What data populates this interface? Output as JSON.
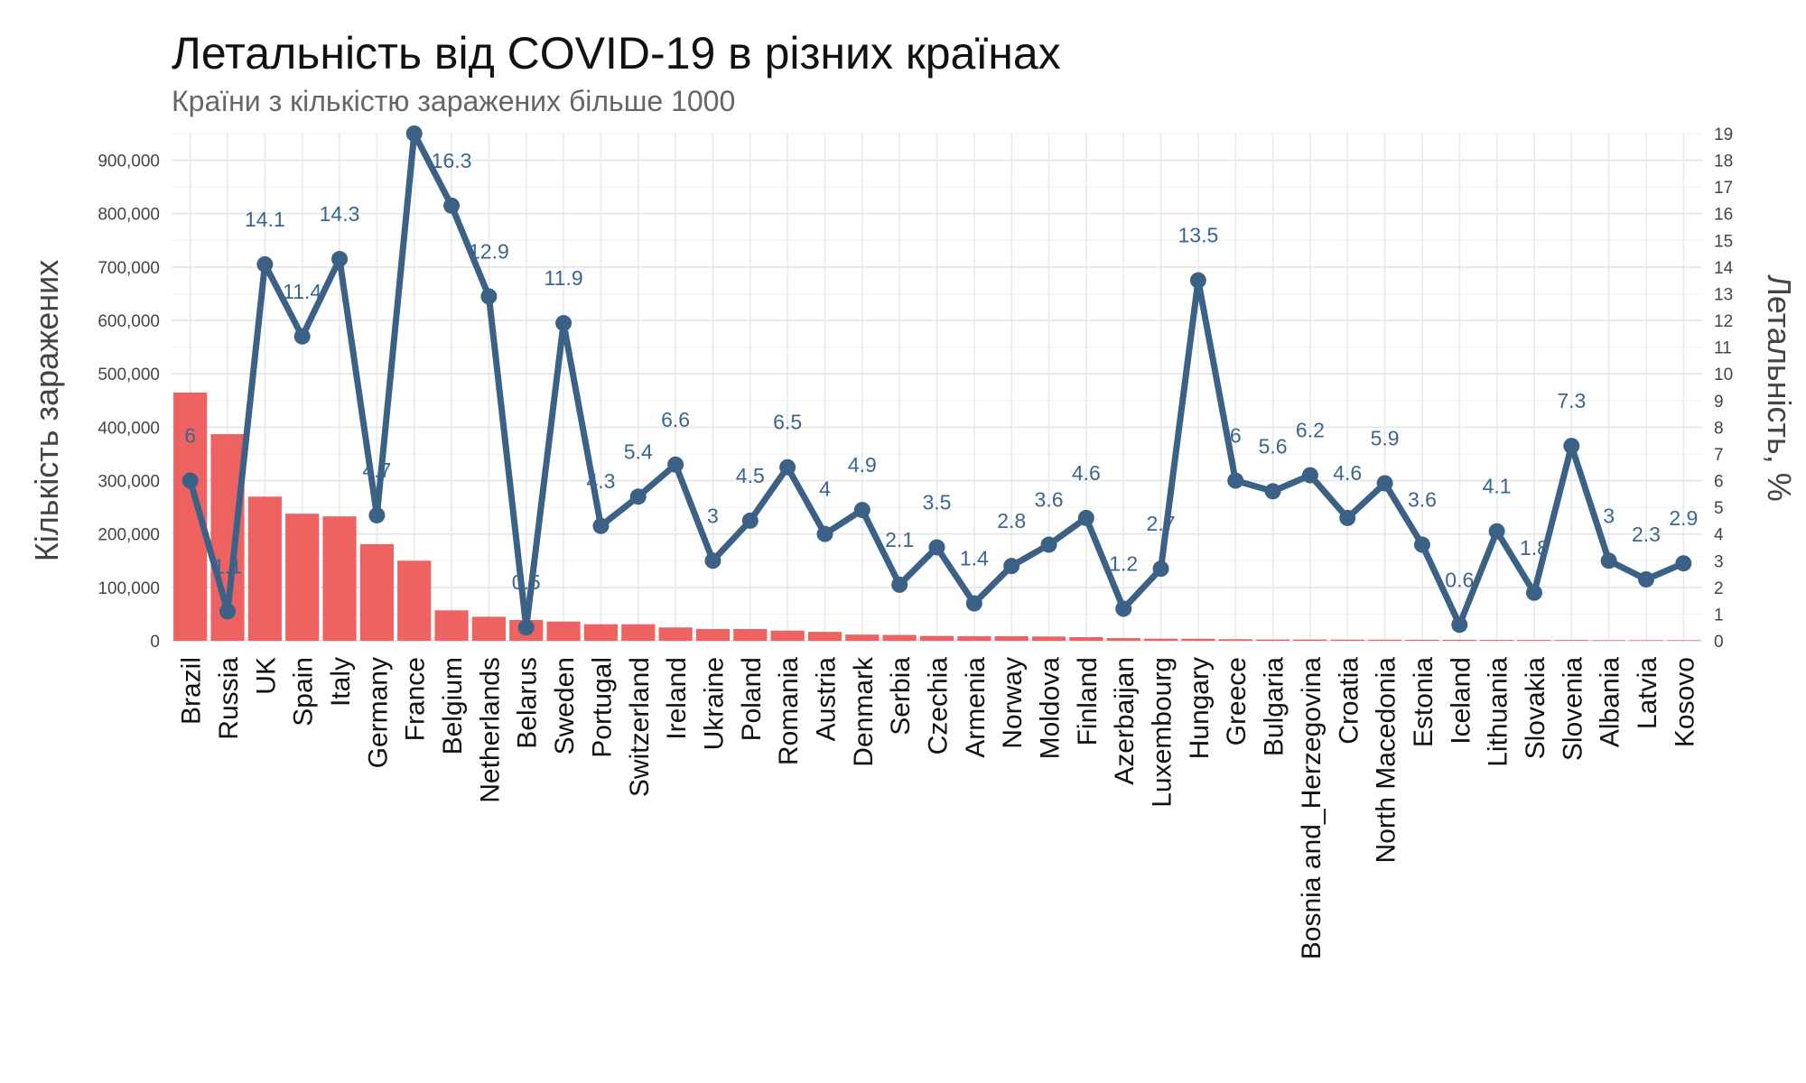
{
  "chart_data": {
    "type": "bar",
    "title": "Летальність від COVID-19 в різних країнах",
    "subtitle": "Країни з кількістю заражених більше 1000",
    "ylabel_left": "Кількість заражених",
    "ylabel_right": "Летальність, %",
    "y_left_range": [
      0,
      950000
    ],
    "y_left_ticks": [
      "0",
      "100,000",
      "200,000",
      "300,000",
      "400,000",
      "500,000",
      "600,000",
      "700,000",
      "800,000",
      "900,000"
    ],
    "y_right_range": [
      0,
      19
    ],
    "y_right_ticks": [
      "0",
      "1",
      "2",
      "3",
      "4",
      "5",
      "6",
      "7",
      "8",
      "9",
      "10",
      "11",
      "12",
      "13",
      "14",
      "15",
      "16",
      "17",
      "18",
      "19"
    ],
    "grid": true,
    "bar_color": "#EF6262",
    "line_color": "#3B6286",
    "categories": [
      "Brazil",
      "Russia",
      "UK",
      "Spain",
      "Italy",
      "Germany",
      "France",
      "Belgium",
      "Netherlands",
      "Belarus",
      "Sweden",
      "Portugal",
      "Switzerland",
      "Ireland",
      "Ukraine",
      "Poland",
      "Romania",
      "Austria",
      "Denmark",
      "Serbia",
      "Czechia",
      "Armenia",
      "Norway",
      "Moldova",
      "Finland",
      "Azerbaijan",
      "Luxembourg",
      "Hungary",
      "Greece",
      "Bulgaria",
      "Bosnia and_Herzegovina",
      "Croatia",
      "North Macedonia",
      "Estonia",
      "Iceland",
      "Lithuania",
      "Slovakia",
      "Slovenia",
      "Albania",
      "Latvia",
      "Kosovo"
    ],
    "series": [
      {
        "type": "bar",
        "axis": "left",
        "values": [
          465000,
          387000,
          270000,
          238000,
          233000,
          181000,
          150000,
          57000,
          45000,
          39000,
          36000,
          31000,
          31000,
          25000,
          22000,
          22000,
          19000,
          16700,
          11600,
          11000,
          9000,
          8500,
          8400,
          7900,
          6800,
          5000,
          4000,
          3800,
          2900,
          2400,
          2400,
          2200,
          2000,
          1900,
          1800,
          1600,
          1500,
          1400,
          1100,
          1050,
          1050
        ]
      },
      {
        "type": "line",
        "axis": "right",
        "values": [
          6,
          1.1,
          14.1,
          11.4,
          14.3,
          4.7,
          19,
          16.3,
          12.9,
          0.5,
          11.9,
          4.3,
          5.4,
          6.6,
          3,
          4.5,
          6.5,
          4,
          4.9,
          2.1,
          3.5,
          1.4,
          2.8,
          3.6,
          4.6,
          1.2,
          2.7,
          13.5,
          6,
          5.6,
          6.2,
          4.6,
          5.9,
          3.6,
          0.6,
          4.1,
          1.8,
          7.3,
          3,
          2.3,
          2.9
        ],
        "labels": [
          "6",
          "1.1",
          "14.1",
          "11.4",
          "14.3",
          "4.7",
          "",
          "16.3",
          "12.9",
          "0.5",
          "11.9",
          "4.3",
          "5.4",
          "6.6",
          "3",
          "4.5",
          "6.5",
          "4",
          "4.9",
          "2.1",
          "3.5",
          "1.4",
          "2.8",
          "3.6",
          "4.6",
          "1.2",
          "2.7",
          "13.5",
          "6",
          "5.6",
          "6.2",
          "4.6",
          "5.9",
          "3.6",
          "0.6",
          "4.1",
          "1.8",
          "7.3",
          "3",
          "2.3",
          "2.9"
        ]
      }
    ]
  }
}
